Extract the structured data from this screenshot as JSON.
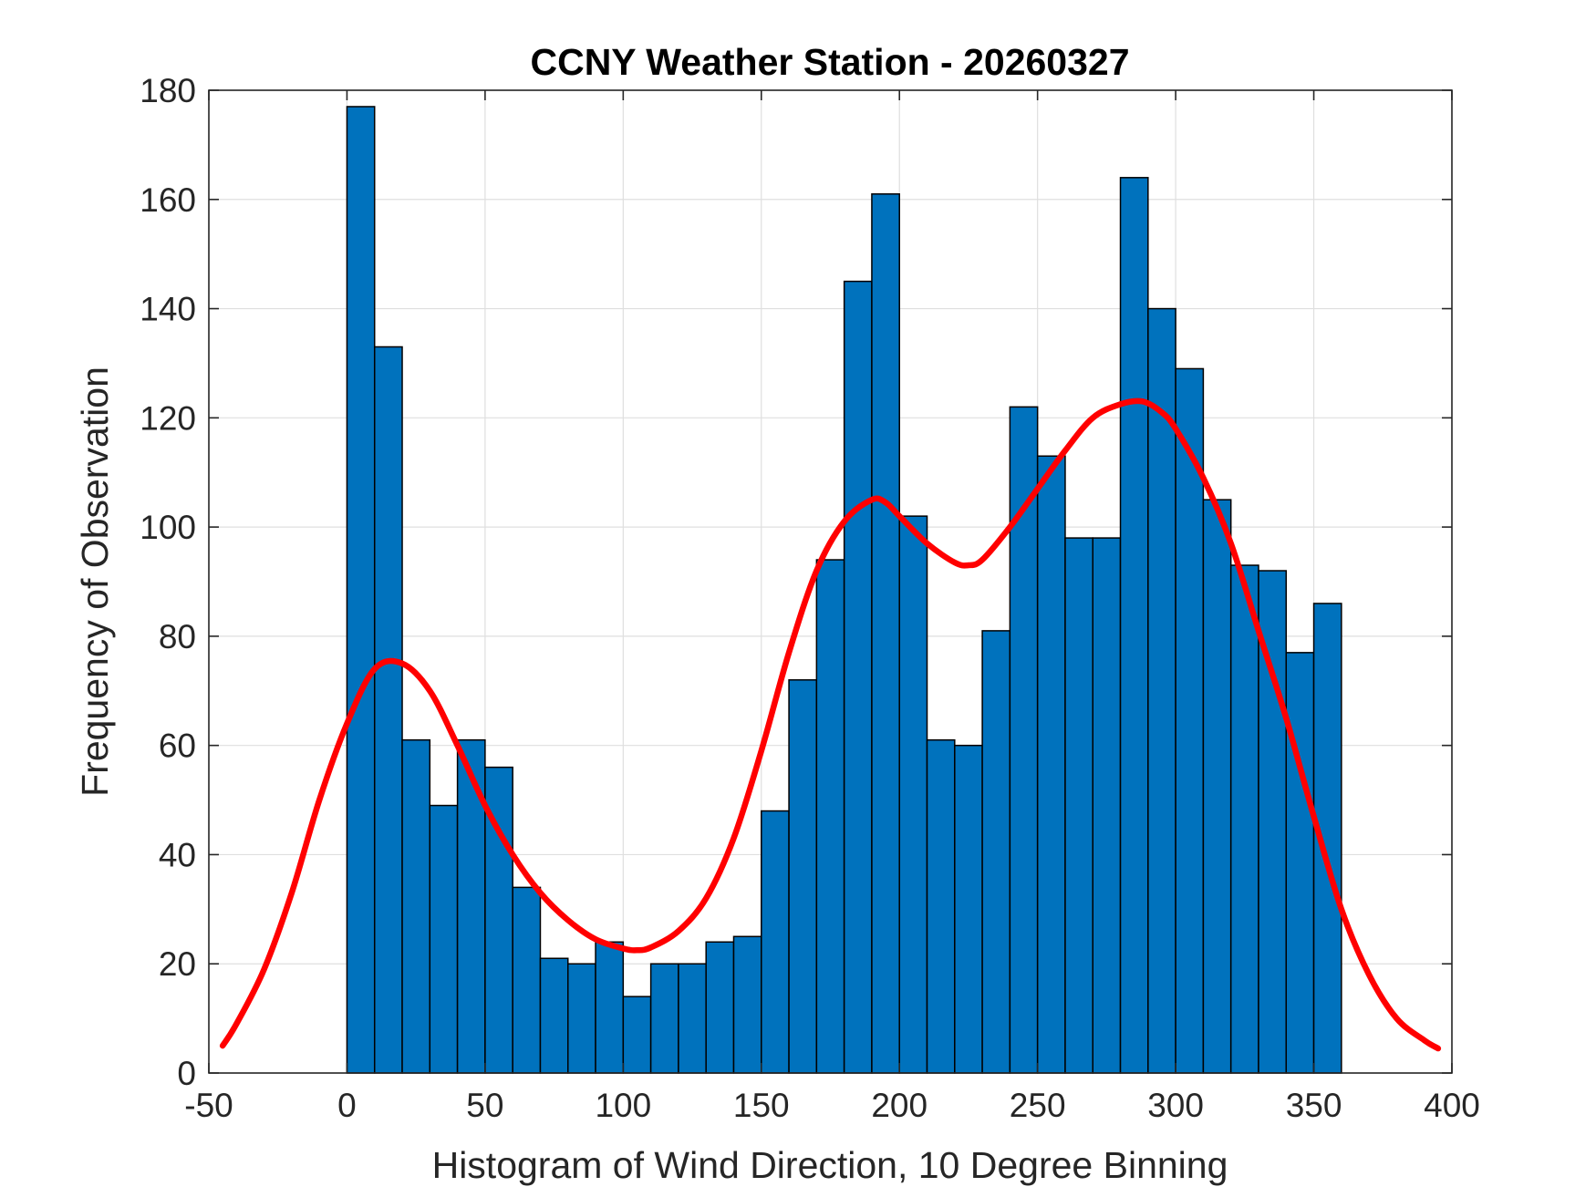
{
  "chart_data": {
    "type": "bar",
    "title": "CCNY Weather Station - 20260327",
    "xlabel": "Histogram of Wind Direction, 10 Degree Binning",
    "ylabel": "Frequency of Observation",
    "xlim": [
      -50,
      400
    ],
    "ylim": [
      0,
      180
    ],
    "xticks": [
      -50,
      0,
      50,
      100,
      150,
      200,
      250,
      300,
      350,
      400
    ],
    "yticks": [
      0,
      20,
      40,
      60,
      80,
      100,
      120,
      140,
      160,
      180
    ],
    "grid": true,
    "bin_width": 10,
    "bin_starts": [
      0,
      10,
      20,
      30,
      40,
      50,
      60,
      70,
      80,
      90,
      100,
      110,
      120,
      130,
      140,
      150,
      160,
      170,
      180,
      190,
      200,
      210,
      220,
      230,
      240,
      250,
      260,
      270,
      280,
      290,
      300,
      310,
      320,
      330,
      340,
      350
    ],
    "values": [
      177,
      133,
      61,
      49,
      61,
      56,
      34,
      21,
      20,
      24,
      14,
      20,
      20,
      24,
      25,
      48,
      72,
      94,
      145,
      161,
      102,
      61,
      60,
      81,
      122,
      113,
      98,
      98,
      164,
      140,
      129,
      105,
      93,
      92,
      77,
      86
    ],
    "fit_curve": {
      "x": [
        -45,
        -40,
        -30,
        -20,
        -10,
        0,
        10,
        20,
        30,
        40,
        50,
        60,
        70,
        80,
        90,
        100,
        105,
        110,
        120,
        130,
        140,
        150,
        160,
        170,
        180,
        190,
        195,
        200,
        210,
        220,
        225,
        230,
        240,
        250,
        260,
        270,
        280,
        288,
        295,
        300,
        310,
        320,
        330,
        340,
        350,
        360,
        370,
        380,
        390,
        395
      ],
      "y": [
        5,
        9,
        19,
        33,
        50,
        64,
        74,
        75,
        70,
        60,
        49,
        40,
        33,
        28,
        24.5,
        22.8,
        22.5,
        23,
        26,
        32,
        43,
        59,
        77,
        92,
        101,
        105,
        104.5,
        102,
        97,
        93.5,
        93,
        94,
        100,
        107,
        114,
        120,
        122.5,
        123,
        121,
        118,
        109,
        97,
        81,
        65,
        47,
        30,
        18,
        10,
        6,
        4.5
      ],
      "color": "#ff0000"
    },
    "colors": {
      "bar_fill": "#0072BD",
      "bar_edge": "#000000",
      "curve": "#ff0000",
      "grid": "#dfdfdf",
      "axis": "#262626"
    }
  }
}
